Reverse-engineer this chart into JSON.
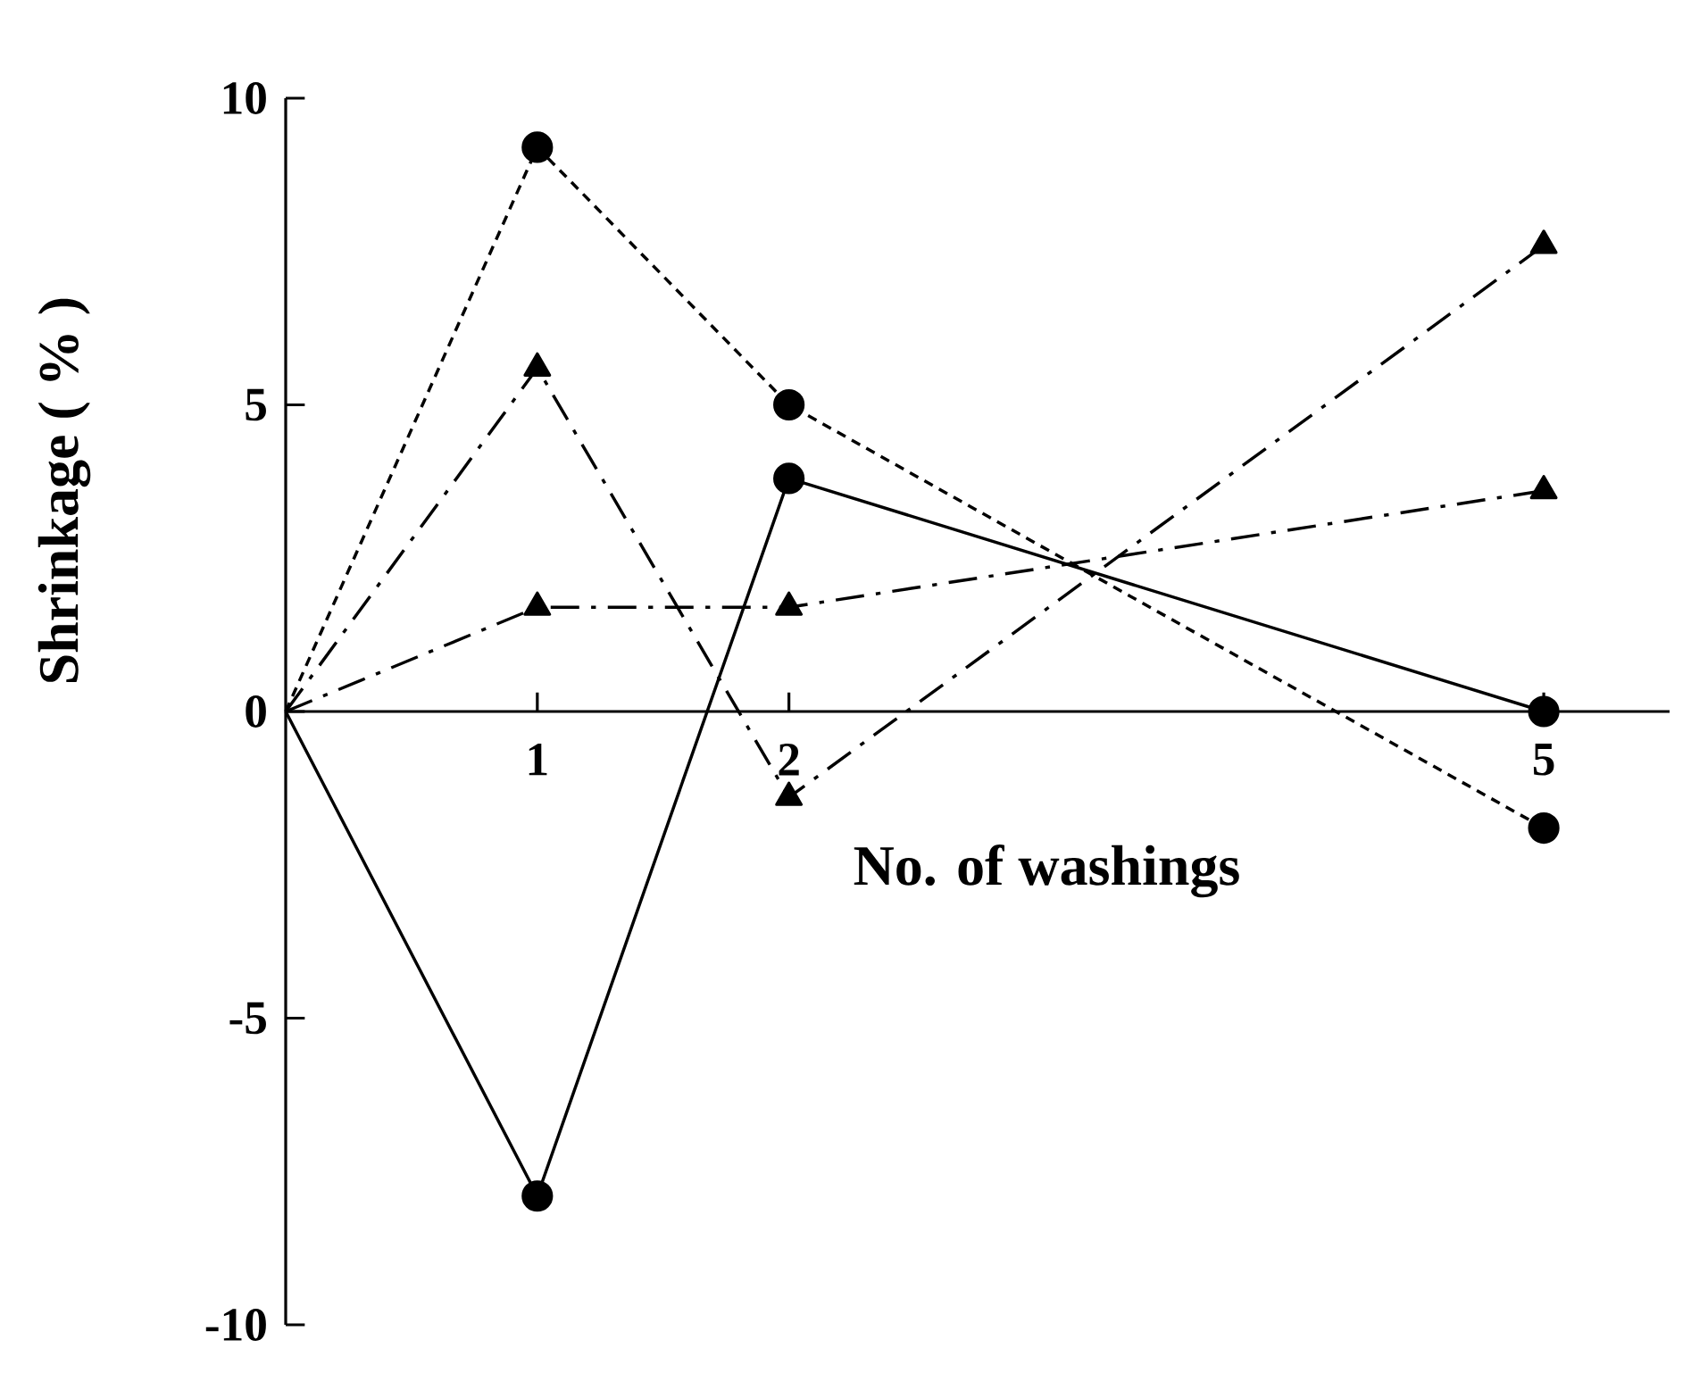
{
  "chart_data": {
    "type": "line",
    "xlabel": "No. of washings",
    "ylabel": "Shrinkage ( % )",
    "x": [
      0,
      1,
      2,
      5
    ],
    "xlim": [
      0,
      5.5
    ],
    "xticks": [
      1,
      2,
      5
    ],
    "ylim": [
      -10,
      10
    ],
    "yticks": [
      -10,
      -5,
      0,
      5,
      10
    ],
    "grid": false,
    "series": [
      {
        "color": "#000000",
        "marker": "circle",
        "line_style": "dotted",
        "values": [
          0,
          9.2,
          5.0,
          -1.9
        ]
      },
      {
        "color": "#000000",
        "marker": "triangle",
        "line_style": "dashed",
        "values": [
          0,
          5.6,
          -1.4,
          7.6
        ]
      },
      {
        "color": "#000000",
        "marker": "circle",
        "line_style": "solid",
        "values": [
          0,
          -7.9,
          3.8,
          0
        ]
      },
      {
        "color": "#000000",
        "marker": "triangle",
        "line_style": "dashed",
        "values": [
          0,
          1.7,
          1.7,
          3.6
        ]
      }
    ]
  }
}
